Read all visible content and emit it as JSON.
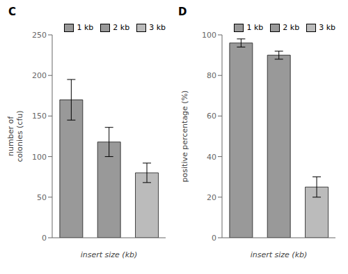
{
  "chart_data": [
    {
      "type": "bar",
      "title": "C",
      "categories": [
        "1 kb",
        "2 kb",
        "3 kb"
      ],
      "values": [
        170,
        118,
        80
      ],
      "errors": [
        25,
        18,
        12
      ],
      "colors": [
        "#999999",
        "#999999",
        "#bbbbbb"
      ],
      "ylabel": "number of\ncolonies (cfu)",
      "xlabel": "insert size (kb)",
      "ylim": [
        0,
        250
      ],
      "yticks": [
        0,
        50,
        100,
        150,
        200,
        250
      ],
      "legend": "upper right",
      "tick_labels": "y",
      "grid": false
    },
    {
      "type": "bar",
      "title": "D",
      "categories": [
        "1 kb",
        "2 kb",
        "3 kb"
      ],
      "values": [
        96,
        90,
        25
      ],
      "errors": [
        2,
        2,
        5
      ],
      "colors": [
        "#999999",
        "#999999",
        "#bbbbbb"
      ],
      "ylabel": "positive percentage (%)",
      "xlabel": "insert size (kb)",
      "ylim": [
        0,
        100
      ],
      "yticks": [
        0,
        20,
        40,
        60,
        80,
        100
      ],
      "legend": "upper right",
      "tick_labels": "y",
      "grid": false
    }
  ]
}
